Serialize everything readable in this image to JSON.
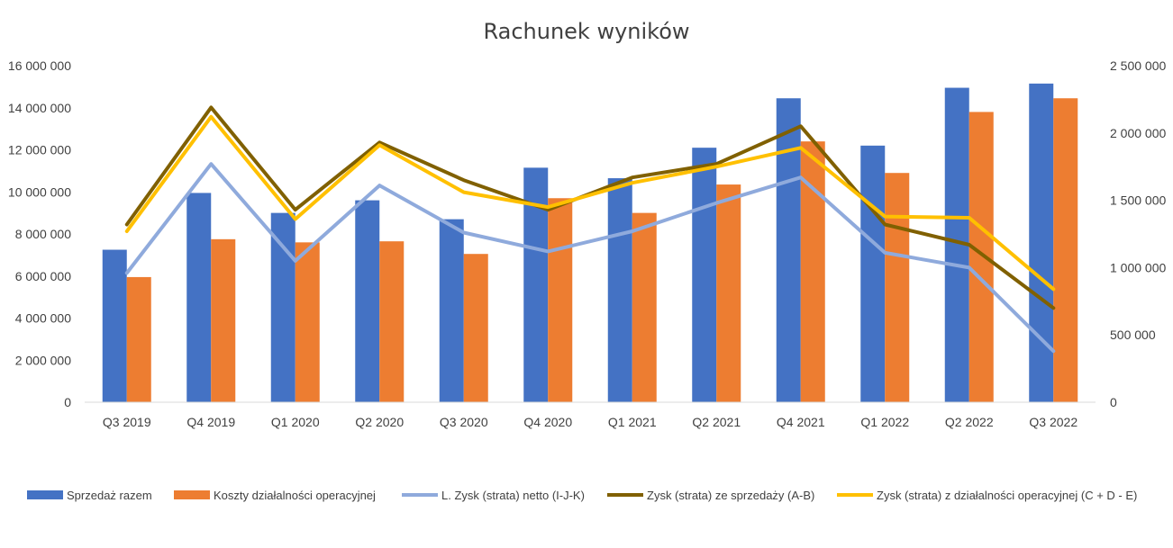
{
  "chart_data": {
    "type": "bar",
    "title": "Rachunek wyników",
    "categories": [
      "Q3 2019",
      "Q4 2019",
      "Q1 2020",
      "Q2 2020",
      "Q3 2020",
      "Q4 2020",
      "Q1 2021",
      "Q2 2021",
      "Q4 2021",
      "Q1 2022",
      "Q2 2022",
      "Q3 2022"
    ],
    "y_left": {
      "ylim": [
        0,
        16000000
      ],
      "ticks": [
        0,
        2000000,
        4000000,
        6000000,
        8000000,
        10000000,
        12000000,
        14000000,
        16000000
      ],
      "tick_labels": [
        "0",
        "2 000 000",
        "4 000 000",
        "6 000 000",
        "8 000 000",
        "10 000 000",
        "12 000 000",
        "14 000 000",
        "16 000 000"
      ]
    },
    "y_right": {
      "ylim": [
        0,
        2500000
      ],
      "ticks": [
        0,
        500000,
        1000000,
        1500000,
        2000000,
        2500000
      ],
      "tick_labels": [
        "0",
        "500 000",
        "1 000 000",
        "1 500 000",
        "2 000 000",
        "2 500 000"
      ]
    },
    "grid": false,
    "legend_position": "bottom",
    "series": [
      {
        "name": "Sprzedaż razem",
        "kind": "bar",
        "axis": "left",
        "color": "#4472C4",
        "values": [
          7250000,
          9950000,
          9000000,
          9600000,
          8700000,
          11150000,
          10650000,
          12100000,
          14450000,
          12200000,
          14950000,
          15150000
        ]
      },
      {
        "name": "Koszty działalności operacyjnej",
        "kind": "bar",
        "axis": "left",
        "color": "#ED7D31",
        "values": [
          5950000,
          7750000,
          7600000,
          7650000,
          7050000,
          9700000,
          9000000,
          10350000,
          12400000,
          10900000,
          13800000,
          14450000
        ]
      },
      {
        "name": "L. Zysk (strata) netto (I-J-K)",
        "kind": "line",
        "axis": "right",
        "color": "#8FAADC",
        "values": [
          960000,
          1770000,
          1050000,
          1610000,
          1260000,
          1120000,
          1270000,
          1480000,
          1670000,
          1110000,
          1000000,
          380000
        ]
      },
      {
        "name": "Zysk (strata) ze sprzedaży (A-B)",
        "kind": "line",
        "axis": "right",
        "color": "#806000",
        "values": [
          1320000,
          2190000,
          1430000,
          1930000,
          1650000,
          1430000,
          1670000,
          1770000,
          2050000,
          1320000,
          1170000,
          700000
        ]
      },
      {
        "name": "Zysk (strata) z działalności operacyjnej (C + D - E)",
        "kind": "line",
        "axis": "right",
        "color": "#FFC000",
        "values": [
          1270000,
          2120000,
          1360000,
          1910000,
          1560000,
          1450000,
          1630000,
          1750000,
          1890000,
          1380000,
          1370000,
          840000
        ]
      }
    ]
  }
}
